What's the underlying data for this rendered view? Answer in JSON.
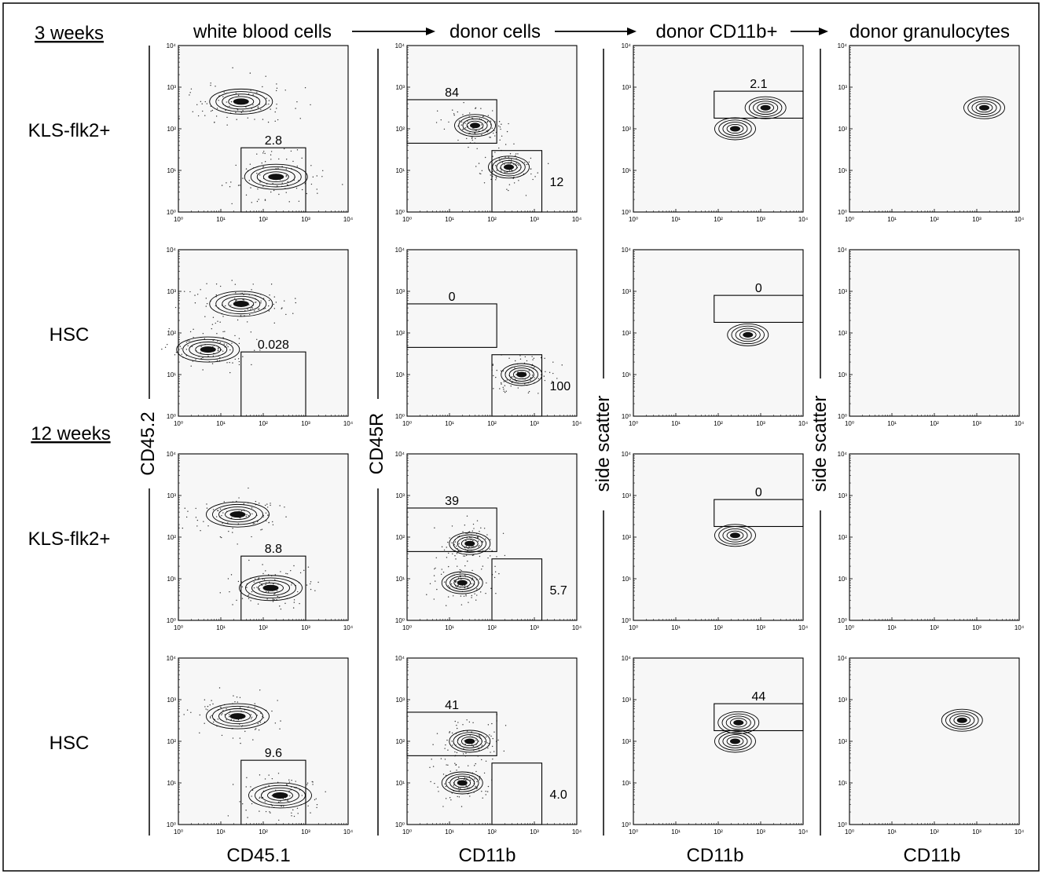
{
  "figure": {
    "time_points": [
      "3 weeks",
      "12 weeks"
    ],
    "row_labels": [
      "KLS-flk2+",
      "HSC",
      "KLS-flk2+",
      "HSC"
    ],
    "column_titles": [
      "white blood cells",
      "donor cells",
      "donor CD11b+",
      "donor granulocytes"
    ],
    "x_axis_labels": [
      "CD45.1",
      "CD11b",
      "CD11b",
      "CD11b"
    ],
    "y_axis_labels": [
      "CD45.2",
      "CD45R",
      "side scatter",
      "side scatter"
    ],
    "tick_labels": [
      "10⁰",
      "10¹",
      "10²",
      "10³",
      "10⁴"
    ]
  },
  "chart_data": [
    {
      "type": "scatter",
      "panel": "3 weeks / KLS-flk2+ / white blood cells",
      "xlabel": "CD45.1",
      "ylabel": "CD45.2",
      "scale": "log",
      "xlim": [
        1,
        10000
      ],
      "ylim": [
        1,
        10000
      ],
      "populations": [
        {
          "x": 30,
          "y": 450
        },
        {
          "x": 200,
          "y": 7
        }
      ],
      "gates": [
        {
          "label": "2.8",
          "percent": 2.8,
          "x_range": [
            30,
            1000
          ],
          "y_range": [
            1,
            35
          ]
        }
      ]
    },
    {
      "type": "scatter",
      "panel": "3 weeks / KLS-flk2+ / donor cells",
      "xlabel": "CD11b",
      "ylabel": "CD45R",
      "scale": "log",
      "xlim": [
        1,
        10000
      ],
      "ylim": [
        1,
        10000
      ],
      "populations": [
        {
          "x": 40,
          "y": 120
        },
        {
          "x": 250,
          "y": 12
        }
      ],
      "gates": [
        {
          "label": "84",
          "percent": 84,
          "x_range": [
            1,
            130
          ],
          "y_range": [
            45,
            500
          ]
        },
        {
          "label": "12",
          "percent": 12,
          "x_range": [
            100,
            1500
          ],
          "y_range": [
            1,
            30
          ]
        }
      ]
    },
    {
      "type": "scatter",
      "panel": "3 weeks / KLS-flk2+ / donor CD11b+",
      "xlabel": "CD11b",
      "ylabel": "side scatter",
      "scale": "log",
      "xlim": [
        1,
        10000
      ],
      "ylim": [
        1,
        10000
      ],
      "populations": [
        {
          "x": 250,
          "y": 100
        },
        {
          "x": 1300,
          "y": 320
        }
      ],
      "gates": [
        {
          "label": "2.1",
          "percent": 2.1,
          "x_range": [
            80,
            10000
          ],
          "y_range": [
            180,
            800
          ]
        }
      ]
    },
    {
      "type": "scatter",
      "panel": "3 weeks / KLS-flk2+ / donor granulocytes",
      "xlabel": "CD11b",
      "ylabel": "side scatter",
      "scale": "log",
      "xlim": [
        1,
        10000
      ],
      "ylim": [
        1,
        10000
      ],
      "populations": [
        {
          "x": 1500,
          "y": 320
        }
      ],
      "gates": []
    },
    {
      "type": "scatter",
      "panel": "3 weeks / HSC / white blood cells",
      "xlabel": "CD45.1",
      "ylabel": "CD45.2",
      "scale": "log",
      "xlim": [
        1,
        10000
      ],
      "ylim": [
        1,
        10000
      ],
      "populations": [
        {
          "x": 30,
          "y": 500
        },
        {
          "x": 5,
          "y": 40
        }
      ],
      "gates": [
        {
          "label": "0.028",
          "percent": 0.028,
          "x_range": [
            30,
            1000
          ],
          "y_range": [
            1,
            35
          ]
        }
      ]
    },
    {
      "type": "scatter",
      "panel": "3 weeks / HSC / donor cells",
      "xlabel": "CD11b",
      "ylabel": "CD45R",
      "scale": "log",
      "xlim": [
        1,
        10000
      ],
      "ylim": [
        1,
        10000
      ],
      "populations": [
        {
          "x": 500,
          "y": 10
        }
      ],
      "gates": [
        {
          "label": "0",
          "percent": 0,
          "x_range": [
            1,
            130
          ],
          "y_range": [
            45,
            500
          ]
        },
        {
          "label": "100",
          "percent": 100,
          "x_range": [
            100,
            1500
          ],
          "y_range": [
            1,
            30
          ]
        }
      ]
    },
    {
      "type": "scatter",
      "panel": "3 weeks / HSC / donor CD11b+",
      "xlabel": "CD11b",
      "ylabel": "side scatter",
      "scale": "log",
      "xlim": [
        1,
        10000
      ],
      "ylim": [
        1,
        10000
      ],
      "populations": [
        {
          "x": 500,
          "y": 90
        }
      ],
      "gates": [
        {
          "label": "0",
          "percent": 0,
          "x_range": [
            80,
            10000
          ],
          "y_range": [
            180,
            800
          ]
        }
      ]
    },
    {
      "type": "scatter",
      "panel": "3 weeks / HSC / donor granulocytes",
      "xlabel": "CD11b",
      "ylabel": "side scatter",
      "scale": "log",
      "xlim": [
        1,
        10000
      ],
      "ylim": [
        1,
        10000
      ],
      "populations": [],
      "gates": []
    },
    {
      "type": "scatter",
      "panel": "12 weeks / KLS-flk2+ / white blood cells",
      "xlabel": "CD45.1",
      "ylabel": "CD45.2",
      "scale": "log",
      "xlim": [
        1,
        10000
      ],
      "ylim": [
        1,
        10000
      ],
      "populations": [
        {
          "x": 25,
          "y": 350
        },
        {
          "x": 150,
          "y": 6
        }
      ],
      "gates": [
        {
          "label": "8.8",
          "percent": 8.8,
          "x_range": [
            30,
            1000
          ],
          "y_range": [
            1,
            35
          ]
        }
      ]
    },
    {
      "type": "scatter",
      "panel": "12 weeks / KLS-flk2+ / donor cells",
      "xlabel": "CD11b",
      "ylabel": "CD45R",
      "scale": "log",
      "xlim": [
        1,
        10000
      ],
      "ylim": [
        1,
        10000
      ],
      "populations": [
        {
          "x": 30,
          "y": 70
        },
        {
          "x": 20,
          "y": 8
        }
      ],
      "gates": [
        {
          "label": "39",
          "percent": 39,
          "x_range": [
            1,
            130
          ],
          "y_range": [
            45,
            500
          ]
        },
        {
          "label": "5.7",
          "percent": 5.7,
          "x_range": [
            100,
            1500
          ],
          "y_range": [
            1,
            30
          ]
        }
      ]
    },
    {
      "type": "scatter",
      "panel": "12 weeks / KLS-flk2+ / donor CD11b+",
      "xlabel": "CD11b",
      "ylabel": "side scatter",
      "scale": "log",
      "xlim": [
        1,
        10000
      ],
      "ylim": [
        1,
        10000
      ],
      "populations": [
        {
          "x": 250,
          "y": 110
        }
      ],
      "gates": [
        {
          "label": "0",
          "percent": 0,
          "x_range": [
            80,
            10000
          ],
          "y_range": [
            180,
            800
          ]
        }
      ]
    },
    {
      "type": "scatter",
      "panel": "12 weeks / KLS-flk2+ / donor granulocytes",
      "xlabel": "CD11b",
      "ylabel": "side scatter",
      "scale": "log",
      "xlim": [
        1,
        10000
      ],
      "ylim": [
        1,
        10000
      ],
      "populations": [],
      "gates": []
    },
    {
      "type": "scatter",
      "panel": "12 weeks / HSC / white blood cells",
      "xlabel": "CD45.1",
      "ylabel": "CD45.2",
      "scale": "log",
      "xlim": [
        1,
        10000
      ],
      "ylim": [
        1,
        10000
      ],
      "populations": [
        {
          "x": 25,
          "y": 400
        },
        {
          "x": 250,
          "y": 5
        }
      ],
      "gates": [
        {
          "label": "9.6",
          "percent": 9.6,
          "x_range": [
            30,
            1000
          ],
          "y_range": [
            1,
            35
          ]
        }
      ]
    },
    {
      "type": "scatter",
      "panel": "12 weeks / HSC / donor cells",
      "xlabel": "CD11b",
      "ylabel": "CD45R",
      "scale": "log",
      "xlim": [
        1,
        10000
      ],
      "ylim": [
        1,
        10000
      ],
      "populations": [
        {
          "x": 30,
          "y": 100
        },
        {
          "x": 20,
          "y": 10
        }
      ],
      "gates": [
        {
          "label": "41",
          "percent": 41,
          "x_range": [
            1,
            130
          ],
          "y_range": [
            45,
            500
          ]
        },
        {
          "label": "4.0",
          "percent": 4.0,
          "x_range": [
            100,
            1500
          ],
          "y_range": [
            1,
            30
          ]
        }
      ]
    },
    {
      "type": "scatter",
      "panel": "12 weeks / HSC / donor CD11b+",
      "xlabel": "CD11b",
      "ylabel": "side scatter",
      "scale": "log",
      "xlim": [
        1,
        10000
      ],
      "ylim": [
        1,
        10000
      ],
      "populations": [
        {
          "x": 300,
          "y": 280
        },
        {
          "x": 250,
          "y": 100
        }
      ],
      "gates": [
        {
          "label": "44",
          "percent": 44,
          "x_range": [
            80,
            10000
          ],
          "y_range": [
            180,
            800
          ]
        }
      ]
    },
    {
      "type": "scatter",
      "panel": "12 weeks / HSC / donor granulocytes",
      "xlabel": "CD11b",
      "ylabel": "side scatter",
      "scale": "log",
      "xlim": [
        1,
        10000
      ],
      "ylim": [
        1,
        10000
      ],
      "populations": [
        {
          "x": 450,
          "y": 320
        }
      ],
      "gates": []
    }
  ]
}
